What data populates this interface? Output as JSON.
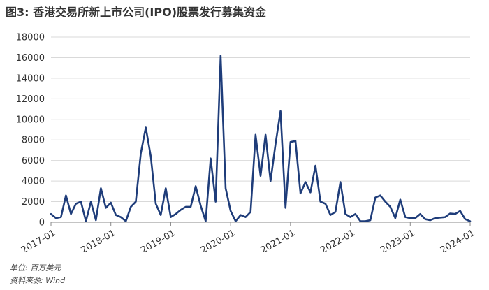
{
  "title": "图3: 香港交易所新上市公司(IPO)股票发行募集资金",
  "footnotes": {
    "unit": "单位: 百万美元",
    "source": "资料来源: Wind"
  },
  "chart_data": {
    "type": "line",
    "title": "图3: 香港交易所新上市公司(IPO)股票发行募集资金",
    "xlabel": "",
    "ylabel": "",
    "ylim": [
      0,
      18000
    ],
    "yticks": [
      0,
      2000,
      4000,
      6000,
      8000,
      10000,
      12000,
      14000,
      16000,
      18000
    ],
    "xticks": [
      "2017-01",
      "2018-01",
      "2019-01",
      "2020-01",
      "2021-01",
      "2022-01",
      "2023-01",
      "2024-01"
    ],
    "grid": "horizontal",
    "line_color": "#1f3d7a",
    "series": [
      {
        "x": [
          "2017-01",
          "2017-02",
          "2017-03",
          "2017-04",
          "2017-05",
          "2017-06",
          "2017-07",
          "2017-08",
          "2017-09",
          "2017-10",
          "2017-11",
          "2017-12",
          "2018-01",
          "2018-02",
          "2018-03",
          "2018-04",
          "2018-05",
          "2018-06",
          "2018-07",
          "2018-08",
          "2018-09",
          "2018-10",
          "2018-11",
          "2018-12",
          "2019-01",
          "2019-02",
          "2019-03",
          "2019-04",
          "2019-05",
          "2019-06",
          "2019-07",
          "2019-08",
          "2019-09",
          "2019-10",
          "2019-11",
          "2019-12",
          "2020-01",
          "2020-02",
          "2020-03",
          "2020-04",
          "2020-05",
          "2020-06",
          "2020-07",
          "2020-08",
          "2020-09",
          "2020-10",
          "2020-11",
          "2020-12",
          "2021-01",
          "2021-02",
          "2021-03",
          "2021-04",
          "2021-05",
          "2021-06",
          "2021-07",
          "2021-08",
          "2021-09",
          "2021-10",
          "2021-11",
          "2021-12",
          "2022-01",
          "2022-02",
          "2022-03",
          "2022-04",
          "2022-05",
          "2022-06",
          "2022-07",
          "2022-08",
          "2022-09",
          "2022-10",
          "2022-11",
          "2022-12",
          "2023-01",
          "2023-02",
          "2023-03",
          "2023-04",
          "2023-05",
          "2023-06",
          "2023-07",
          "2023-08",
          "2023-09",
          "2023-10",
          "2023-11",
          "2023-12",
          "2024-01"
        ],
        "values": [
          800,
          400,
          500,
          2600,
          800,
          1800,
          2000,
          100,
          2000,
          200,
          3300,
          1400,
          1900,
          700,
          500,
          100,
          1500,
          2000,
          6700,
          9200,
          6400,
          1800,
          700,
          3300,
          500,
          800,
          1200,
          1500,
          1500,
          3500,
          1600,
          100,
          6200,
          2000,
          16200,
          3300,
          1100,
          100,
          700,
          500,
          1000,
          8500,
          4500,
          8500,
          4000,
          7600,
          10800,
          1400,
          7800,
          7900,
          2800,
          3900,
          2900,
          5500,
          2000,
          1800,
          700,
          1000,
          3900,
          800,
          500,
          800,
          100,
          100,
          200,
          2400,
          2600,
          2000,
          1500,
          400,
          2200,
          500,
          400,
          400,
          800,
          300,
          200,
          400,
          450,
          500,
          850,
          800,
          1100,
          300,
          100
        ]
      }
    ]
  }
}
